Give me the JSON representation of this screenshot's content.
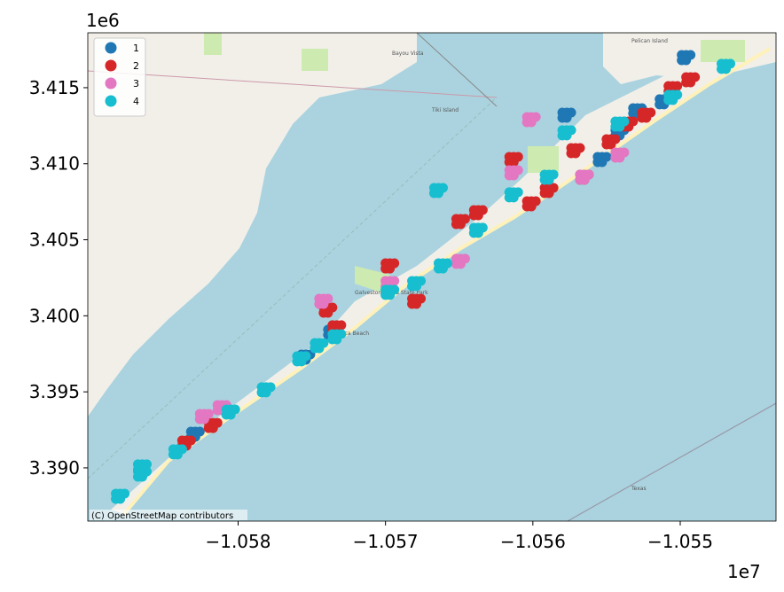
{
  "chart_data": {
    "type": "scatter",
    "title": "",
    "xlabel": "",
    "ylabel": "",
    "x_offset_label": "1e7",
    "y_offset_label": "1e6",
    "xlim": [
      -1.05902,
      -1.05435
    ],
    "ylim": [
      3.3865,
      3.41861
    ],
    "x_ticks": [
      -1.058,
      -1.057,
      -1.056,
      -1.055
    ],
    "x_tick_labels": [
      "−1.058",
      "−1.057",
      "−1.056",
      "−1.055"
    ],
    "y_ticks": [
      3.39,
      3.395,
      3.4,
      3.405,
      3.41,
      3.415
    ],
    "y_tick_labels": [
      "3.390",
      "3.395",
      "3.400",
      "3.405",
      "3.410",
      "3.415"
    ],
    "grid": false,
    "legend_position": "top-left",
    "basemap": "OpenStreetMap",
    "attribution": "(C) OpenStreetMap contributors",
    "series": [
      {
        "name": "1",
        "color": "#1f77b4",
        "points": [
          [
            -1.05829,
            3.39221
          ],
          [
            -1.05736,
            3.39891
          ],
          [
            -1.05754,
            3.39728
          ],
          [
            -1.05529,
            3.41348
          ],
          [
            -1.05511,
            3.41407
          ],
          [
            -1.05541,
            3.41203
          ],
          [
            -1.05577,
            3.41319
          ],
          [
            -1.05496,
            3.41698
          ],
          [
            -1.05553,
            3.41028
          ]
        ]
      },
      {
        "name": "2",
        "color": "#d62728",
        "points": [
          [
            -1.05835,
            3.39163
          ],
          [
            -1.05817,
            3.39279
          ],
          [
            -1.05739,
            3.40037
          ],
          [
            -1.05733,
            3.39921
          ],
          [
            -1.05697,
            3.40328
          ],
          [
            -1.05679,
            3.40095
          ],
          [
            -1.05649,
            3.4062
          ],
          [
            -1.05637,
            3.40678
          ],
          [
            -1.05601,
            3.40736
          ],
          [
            -1.05571,
            3.41086
          ],
          [
            -1.05547,
            3.41144
          ],
          [
            -1.05535,
            3.41261
          ],
          [
            -1.05523,
            3.41319
          ],
          [
            -1.05505,
            3.41494
          ],
          [
            -1.05493,
            3.41552
          ],
          [
            -1.05565,
            3.40911
          ],
          [
            -1.05613,
            3.41028
          ],
          [
            -1.05589,
            3.40824
          ]
        ]
      },
      {
        "name": "3",
        "color": "#e377c2",
        "points": [
          [
            -1.05823,
            3.39338
          ],
          [
            -1.05811,
            3.39396
          ],
          [
            -1.05742,
            3.40095
          ],
          [
            -1.05649,
            3.40358
          ],
          [
            -1.05601,
            3.4129
          ],
          [
            -1.05565,
            3.40911
          ],
          [
            -1.05541,
            3.41057
          ],
          [
            -1.05613,
            3.4094
          ],
          [
            -1.05697,
            3.40212
          ]
        ]
      },
      {
        "name": "4",
        "color": "#17becf",
        "points": [
          [
            -1.0588,
            3.38813
          ],
          [
            -1.05865,
            3.38959
          ],
          [
            -1.05841,
            3.39105
          ],
          [
            -1.05805,
            3.39367
          ],
          [
            -1.05781,
            3.39513
          ],
          [
            -1.05757,
            3.39717
          ],
          [
            -1.05745,
            3.39804
          ],
          [
            -1.05733,
            3.39862
          ],
          [
            -1.05679,
            3.40212
          ],
          [
            -1.05661,
            3.40328
          ],
          [
            -1.05637,
            3.40562
          ],
          [
            -1.05613,
            3.40795
          ],
          [
            -1.05589,
            3.40911
          ],
          [
            -1.05577,
            3.41203
          ],
          [
            -1.05541,
            3.41261
          ],
          [
            -1.05505,
            3.41436
          ],
          [
            -1.05469,
            3.4164
          ],
          [
            -1.05865,
            3.39006
          ],
          [
            -1.05697,
            3.40154
          ],
          [
            -1.05664,
            3.40824
          ]
        ]
      }
    ]
  },
  "map_labels": {
    "bayou_vista": "Bayou Vista",
    "tiki_island": "Tiki Island",
    "pelican_island": "Pelican Island",
    "state_park": "Galveston Island State Park",
    "jamaica_beach": "Jamaica Beach",
    "texas": "Texas"
  },
  "colors": {
    "water": "#aad3df",
    "land": "#f2efe9",
    "beach": "#fff1ba",
    "park": "#cdebb0"
  }
}
